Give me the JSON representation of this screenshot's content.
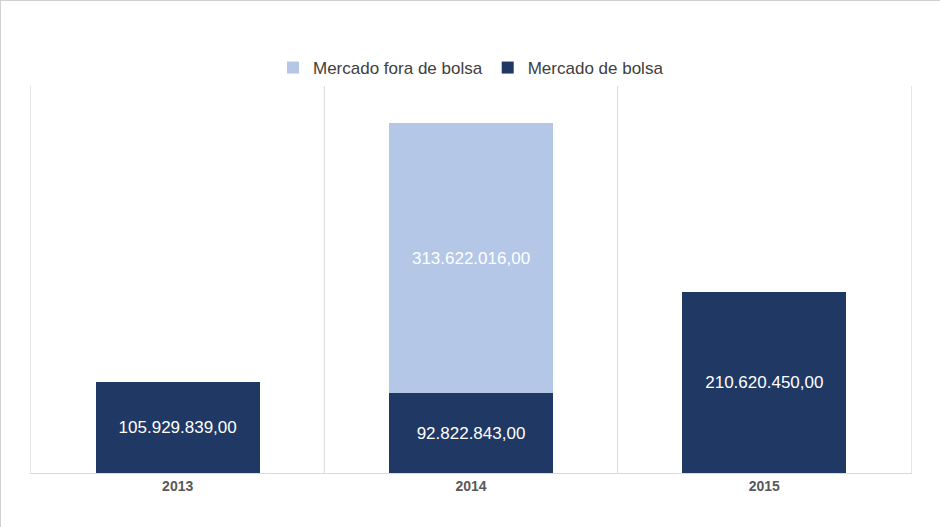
{
  "chart_data": {
    "type": "bar",
    "categories": [
      "2013",
      "2014",
      "2015"
    ],
    "series": [
      {
        "name": "Mercado de bolsa",
        "color": "#203864",
        "values": [
          105929839,
          92822843,
          210620450
        ],
        "value_labels": [
          "105.929.839,00",
          "92.822.843,00",
          "210.620.450,00"
        ]
      },
      {
        "name": "Mercado fora de bolsa",
        "color": "#b4c7e7",
        "values": [
          null,
          313622016,
          null
        ],
        "value_labels": [
          null,
          "313.622.016,00",
          null
        ]
      }
    ],
    "ylim": [
      0,
      450000000
    ],
    "stacked": true,
    "data_labels": true,
    "legend": "top",
    "grid": false,
    "tick_labels": "x"
  }
}
